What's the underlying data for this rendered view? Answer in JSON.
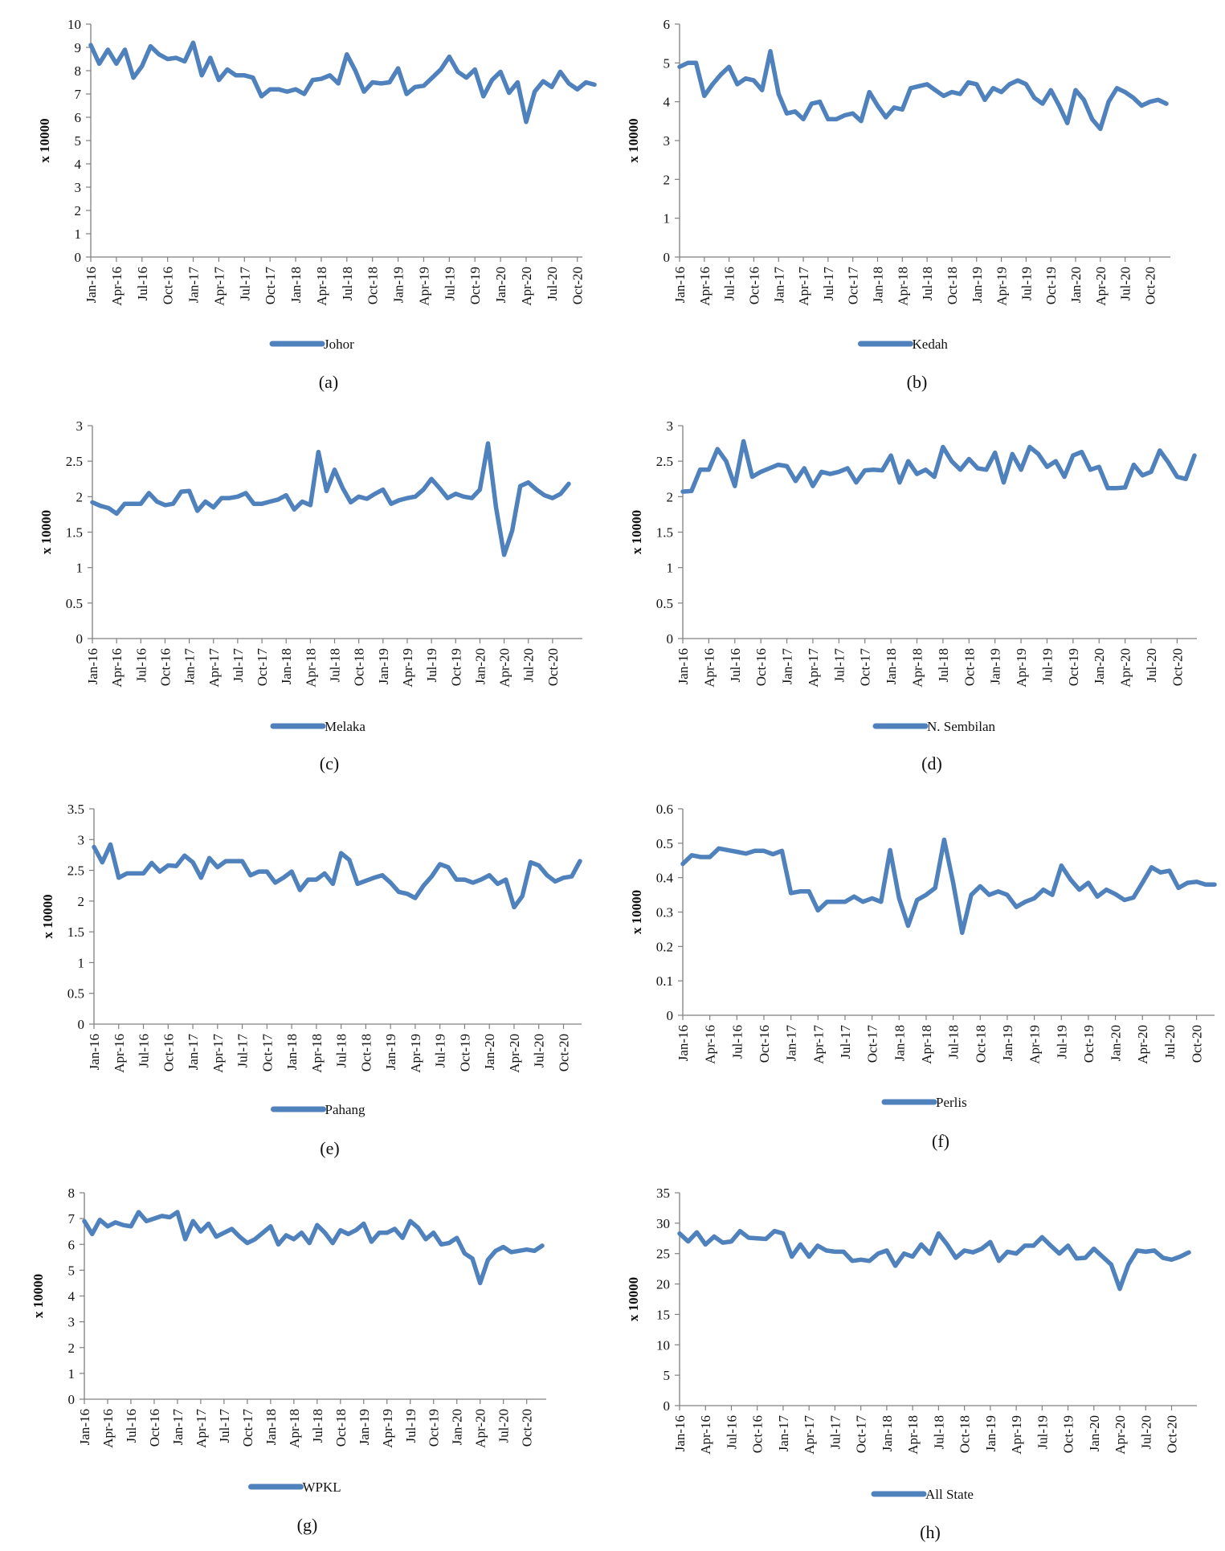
{
  "series_color": "#4F81BD",
  "x_tick_labels": [
    "Jan-16",
    "Apr-16",
    "Jul-16",
    "Oct-16",
    "Jan-17",
    "Apr-17",
    "Jul-17",
    "Oct-17",
    "Jan-18",
    "Apr-18",
    "Jul-18",
    "Oct-18",
    "Jan-19",
    "Apr-19",
    "Jul-19",
    "Oct-19",
    "Jan-20",
    "Apr-20",
    "Jul-20",
    "Oct-20"
  ],
  "chart_data": [
    {
      "type": "line",
      "caption": "(a)",
      "ylabel": "x 10000",
      "ylim": [
        0,
        10
      ],
      "yticks": [
        0,
        1,
        2,
        3,
        4,
        5,
        6,
        7,
        8,
        9,
        10
      ],
      "ytick_labels": [
        "0",
        "1",
        "2",
        "3",
        "4",
        "5",
        "6",
        "7",
        "8",
        "9",
        "10"
      ],
      "series": [
        {
          "name": "Johor",
          "values": [
            9.1,
            8.3,
            8.9,
            8.3,
            8.9,
            7.7,
            8.2,
            9.05,
            8.7,
            8.5,
            8.55,
            8.4,
            9.2,
            7.8,
            8.55,
            7.6,
            8.05,
            7.8,
            7.8,
            7.7,
            6.9,
            7.2,
            7.2,
            7.1,
            7.2,
            7.0,
            7.6,
            7.65,
            7.8,
            7.45,
            8.7,
            8.0,
            7.1,
            7.5,
            7.45,
            7.5,
            8.1,
            7.0,
            7.3,
            7.35,
            7.7,
            8.05,
            8.6,
            7.95,
            7.7,
            8.05,
            6.9,
            7.6,
            7.95,
            7.05,
            7.5,
            5.8,
            7.1,
            7.55,
            7.3,
            7.95,
            7.45,
            7.2,
            7.5,
            7.4
          ]
        }
      ]
    },
    {
      "type": "line",
      "caption": "(b)",
      "ylabel": "x 10000",
      "ylim": [
        0,
        6
      ],
      "yticks": [
        0,
        1,
        2,
        3,
        4,
        5,
        6
      ],
      "ytick_labels": [
        "0",
        "1",
        "2",
        "3",
        "4",
        "5",
        "6"
      ],
      "series": [
        {
          "name": "Kedah",
          "values": [
            4.9,
            5.0,
            5.0,
            4.15,
            4.45,
            4.7,
            4.9,
            4.45,
            4.6,
            4.55,
            4.3,
            5.3,
            4.2,
            3.7,
            3.75,
            3.55,
            3.95,
            4.0,
            3.55,
            3.55,
            3.65,
            3.7,
            3.5,
            4.25,
            3.9,
            3.6,
            3.85,
            3.8,
            4.35,
            4.4,
            4.45,
            4.3,
            4.15,
            4.25,
            4.2,
            4.5,
            4.45,
            4.05,
            4.35,
            4.25,
            4.45,
            4.55,
            4.45,
            4.1,
            3.95,
            4.3,
            3.9,
            3.45,
            4.3,
            4.05,
            3.55,
            3.3,
            4.0,
            4.35,
            4.25,
            4.1,
            3.9,
            4.0,
            4.05,
            3.95
          ]
        }
      ]
    },
    {
      "type": "line",
      "caption": "(c)",
      "ylabel": "x 10000",
      "ylim": [
        0,
        3
      ],
      "yticks": [
        0,
        0.5,
        1,
        1.5,
        2,
        2.5,
        3
      ],
      "ytick_labels": [
        "0",
        "0.5",
        "1",
        "1.5",
        "2",
        "2.5",
        "3"
      ],
      "series": [
        {
          "name": "Melaka",
          "values": [
            1.92,
            1.87,
            1.84,
            1.76,
            1.9,
            1.9,
            1.9,
            2.05,
            1.93,
            1.88,
            1.9,
            2.07,
            2.08,
            1.8,
            1.93,
            1.85,
            1.98,
            1.98,
            2.0,
            2.05,
            1.9,
            1.9,
            1.93,
            1.96,
            2.02,
            1.82,
            1.93,
            1.88,
            2.63,
            2.08,
            2.38,
            2.12,
            1.92,
            2.0,
            1.97,
            2.04,
            2.1,
            1.9,
            1.95,
            1.98,
            2.0,
            2.1,
            2.25,
            2.12,
            1.98,
            2.04,
            2.0,
            1.98,
            2.1,
            2.75,
            1.85,
            1.18,
            1.52,
            2.15,
            2.2,
            2.1,
            2.02,
            1.98,
            2.04,
            2.18
          ]
        }
      ]
    },
    {
      "type": "line",
      "caption": "(d)",
      "ylabel": "x 10000",
      "ylim": [
        0,
        3
      ],
      "yticks": [
        0,
        0.5,
        1,
        1.5,
        2,
        2.5,
        3
      ],
      "ytick_labels": [
        "0",
        "0.5",
        "1",
        "1.5",
        "2",
        "2.5",
        "3"
      ],
      "series": [
        {
          "name": "N. Sembilan",
          "values": [
            2.07,
            2.08,
            2.38,
            2.38,
            2.67,
            2.5,
            2.15,
            2.78,
            2.28,
            2.35,
            2.4,
            2.45,
            2.43,
            2.22,
            2.4,
            2.15,
            2.35,
            2.32,
            2.35,
            2.4,
            2.2,
            2.37,
            2.38,
            2.37,
            2.58,
            2.2,
            2.5,
            2.32,
            2.38,
            2.28,
            2.7,
            2.5,
            2.38,
            2.53,
            2.4,
            2.38,
            2.62,
            2.2,
            2.6,
            2.38,
            2.7,
            2.6,
            2.42,
            2.5,
            2.28,
            2.58,
            2.63,
            2.38,
            2.42,
            2.12,
            2.12,
            2.13,
            2.45,
            2.3,
            2.35,
            2.65,
            2.48,
            2.28,
            2.25,
            2.58
          ]
        }
      ]
    },
    {
      "type": "line",
      "caption": "(e)",
      "ylabel": "x 10000",
      "ylim": [
        0,
        3.5
      ],
      "yticks": [
        0,
        0.5,
        1,
        1.5,
        2,
        2.5,
        3,
        3.5
      ],
      "ytick_labels": [
        "0",
        "0.5",
        "1",
        "1.5",
        "2",
        "2.5",
        "3",
        "3.5"
      ],
      "series": [
        {
          "name": "Pahang",
          "values": [
            2.88,
            2.63,
            2.92,
            2.38,
            2.45,
            2.45,
            2.45,
            2.62,
            2.48,
            2.58,
            2.57,
            2.74,
            2.63,
            2.38,
            2.7,
            2.55,
            2.65,
            2.65,
            2.65,
            2.42,
            2.48,
            2.48,
            2.3,
            2.38,
            2.48,
            2.18,
            2.35,
            2.35,
            2.45,
            2.28,
            2.78,
            2.67,
            2.28,
            2.33,
            2.38,
            2.42,
            2.3,
            2.15,
            2.12,
            2.05,
            2.25,
            2.4,
            2.6,
            2.55,
            2.35,
            2.35,
            2.3,
            2.35,
            2.42,
            2.28,
            2.35,
            1.9,
            2.08,
            2.63,
            2.58,
            2.42,
            2.32,
            2.38,
            2.4,
            2.65
          ]
        }
      ]
    },
    {
      "type": "line",
      "caption": "(f)",
      "ylabel": "x 10000",
      "ylim": [
        0,
        0.6
      ],
      "yticks": [
        0,
        0.1,
        0.2,
        0.3,
        0.4,
        0.5,
        0.6
      ],
      "ytick_labels": [
        "0",
        "0.1",
        "0.2",
        "0.3",
        "0.4",
        "0.5",
        "0.6"
      ],
      "series": [
        {
          "name": "Perlis",
          "values": [
            0.44,
            0.465,
            0.46,
            0.46,
            0.485,
            0.48,
            0.475,
            0.47,
            0.478,
            0.478,
            0.468,
            0.478,
            0.355,
            0.36,
            0.36,
            0.305,
            0.33,
            0.33,
            0.33,
            0.345,
            0.33,
            0.34,
            0.33,
            0.48,
            0.34,
            0.26,
            0.335,
            0.35,
            0.37,
            0.51,
            0.385,
            0.24,
            0.35,
            0.375,
            0.35,
            0.36,
            0.35,
            0.315,
            0.33,
            0.34,
            0.365,
            0.35,
            0.435,
            0.395,
            0.365,
            0.385,
            0.345,
            0.365,
            0.352,
            0.335,
            0.342,
            0.385,
            0.43,
            0.415,
            0.42,
            0.37,
            0.385,
            0.388,
            0.38,
            0.38
          ]
        }
      ]
    },
    {
      "type": "line",
      "caption": "(g)",
      "ylabel": "x 10000",
      "ylim": [
        0,
        8
      ],
      "yticks": [
        0,
        1,
        2,
        3,
        4,
        5,
        6,
        7,
        8
      ],
      "ytick_labels": [
        "0",
        "1",
        "2",
        "3",
        "4",
        "5",
        "6",
        "7",
        "8"
      ],
      "series": [
        {
          "name": "WPKL",
          "values": [
            6.9,
            6.4,
            6.95,
            6.7,
            6.85,
            6.75,
            6.7,
            7.25,
            6.9,
            7.0,
            7.1,
            7.05,
            7.25,
            6.2,
            6.9,
            6.5,
            6.8,
            6.3,
            6.45,
            6.6,
            6.3,
            6.05,
            6.2,
            6.45,
            6.7,
            6.0,
            6.35,
            6.2,
            6.45,
            6.05,
            6.75,
            6.45,
            6.05,
            6.55,
            6.4,
            6.55,
            6.8,
            6.1,
            6.45,
            6.45,
            6.6,
            6.25,
            6.9,
            6.65,
            6.2,
            6.45,
            6.0,
            6.05,
            6.25,
            5.65,
            5.45,
            4.5,
            5.4,
            5.75,
            5.9,
            5.7,
            5.75,
            5.8,
            5.75,
            5.95
          ]
        }
      ]
    },
    {
      "type": "line",
      "caption": "(h)",
      "ylabel": "x 10000",
      "ylim": [
        0,
        35
      ],
      "yticks": [
        0,
        5,
        10,
        15,
        20,
        25,
        30,
        35
      ],
      "ytick_labels": [
        "0",
        "5",
        "10",
        "15",
        "20",
        "25",
        "30",
        "35"
      ],
      "series": [
        {
          "name": "All State",
          "values": [
            28.3,
            27.0,
            28.5,
            26.5,
            27.8,
            26.8,
            27.0,
            28.7,
            27.6,
            27.5,
            27.4,
            28.7,
            28.3,
            24.5,
            26.5,
            24.5,
            26.3,
            25.5,
            25.3,
            25.3,
            23.8,
            24.0,
            23.8,
            25.0,
            25.5,
            23.0,
            25.0,
            24.5,
            26.5,
            25.0,
            28.3,
            26.5,
            24.3,
            25.5,
            25.2,
            25.8,
            26.9,
            23.8,
            25.3,
            25.0,
            26.3,
            26.3,
            27.7,
            26.3,
            25.0,
            26.3,
            24.2,
            24.3,
            25.8,
            24.5,
            23.2,
            19.2,
            23.2,
            25.5,
            25.3,
            25.5,
            24.3,
            24.0,
            24.5,
            25.2
          ]
        }
      ]
    }
  ]
}
